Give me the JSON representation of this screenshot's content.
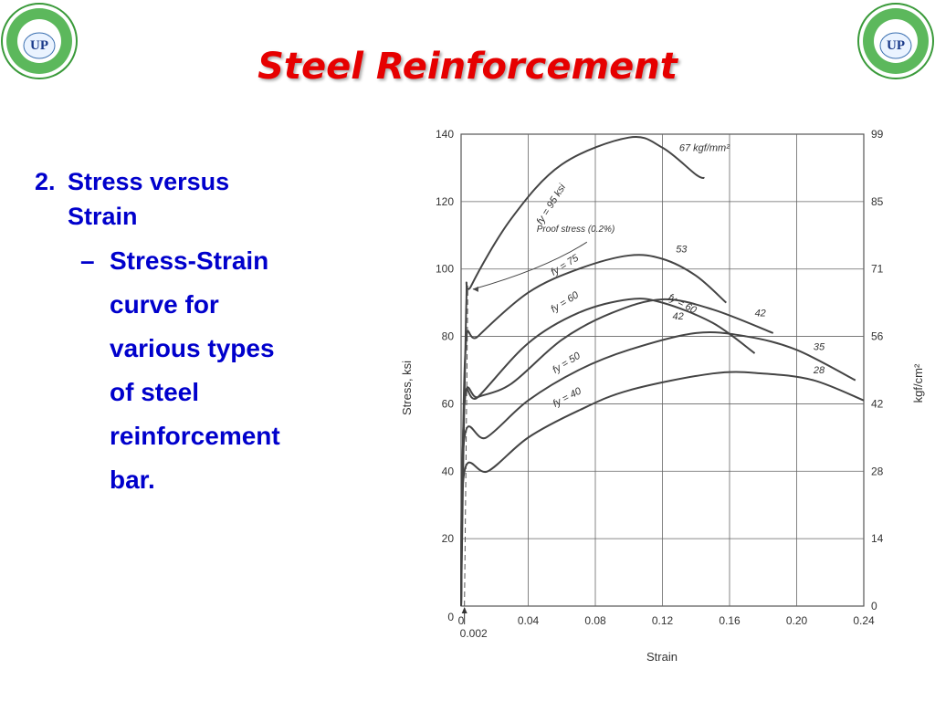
{
  "logo": {
    "text": "UP",
    "arc_text": "UNIVERSITY OF PALESTINE"
  },
  "title": "Steel Reinforcement",
  "bullets": {
    "level1": {
      "number": "2.",
      "text_line1": "Stress versus",
      "text_line2": "Strain"
    },
    "level2": {
      "dash": "–",
      "lines": [
        "Stress-Strain",
        "curve for",
        "various types",
        "of steel",
        "reinforcement",
        "bar."
      ]
    }
  },
  "chart_data": {
    "type": "line",
    "xlabel": "Strain",
    "ylabel": "Stress, ksi",
    "y2label": "kgf/cm²",
    "xlim": [
      0,
      0.24
    ],
    "ylim": [
      0,
      140
    ],
    "x_ticks": [
      "0",
      "0.04",
      "0.08",
      "0.12",
      "0.16",
      "0.20",
      "0.24"
    ],
    "y_ticks": [
      "0",
      "20",
      "40",
      "60",
      "80",
      "100",
      "120",
      "140"
    ],
    "y2_ticks": [
      "0",
      "14",
      "28",
      "42",
      "56",
      "71",
      "85",
      "99"
    ],
    "x_marker": "0.002",
    "grid": true,
    "annotations": {
      "proof_stress": "Proof stress (0.2%)",
      "fy95_label": "fy = 95 ksi",
      "fy95_end": "67 kgf/mm²",
      "fy75_label": "fy = 75",
      "fy75_end": "53",
      "fy60a_label": "fy = 60",
      "fy60a_end": "42",
      "fy60b_label": "fy = 60",
      "fy60b_end": "42",
      "fy50_label": "fy = 50",
      "fy50_end": "35",
      "fy40_label": "fy = 40",
      "fy40_end": "28"
    },
    "series": [
      {
        "name": "fy = 95 ksi",
        "points": [
          [
            0,
            0
          ],
          [
            0.003,
            88
          ],
          [
            0.006,
            95
          ],
          [
            0.03,
            115
          ],
          [
            0.06,
            131
          ],
          [
            0.1,
            139
          ],
          [
            0.12,
            136
          ],
          [
            0.14,
            128
          ],
          [
            0.145,
            127
          ]
        ]
      },
      {
        "name": "fy = 75",
        "points": [
          [
            0,
            0
          ],
          [
            0.0025,
            75
          ],
          [
            0.01,
            80
          ],
          [
            0.04,
            93
          ],
          [
            0.07,
            100
          ],
          [
            0.1,
            104
          ],
          [
            0.12,
            103
          ],
          [
            0.14,
            98
          ],
          [
            0.158,
            90
          ]
        ]
      },
      {
        "name": "fy = 60",
        "points": [
          [
            0,
            0
          ],
          [
            0.002,
            60
          ],
          [
            0.01,
            62
          ],
          [
            0.04,
            78
          ],
          [
            0.07,
            87
          ],
          [
            0.1,
            91
          ],
          [
            0.12,
            90
          ],
          [
            0.15,
            84
          ],
          [
            0.175,
            75
          ]
        ]
      },
      {
        "name": "fy = 60",
        "points": [
          [
            0,
            0
          ],
          [
            0.002,
            60
          ],
          [
            0.01,
            62
          ],
          [
            0.03,
            66
          ],
          [
            0.06,
            79
          ],
          [
            0.09,
            87
          ],
          [
            0.12,
            91
          ],
          [
            0.15,
            88
          ],
          [
            0.186,
            81
          ]
        ]
      },
      {
        "name": "fy = 50",
        "points": [
          [
            0,
            0
          ],
          [
            0.002,
            50
          ],
          [
            0.015,
            50
          ],
          [
            0.04,
            61
          ],
          [
            0.07,
            70
          ],
          [
            0.1,
            76
          ],
          [
            0.14,
            81
          ],
          [
            0.17,
            80
          ],
          [
            0.2,
            76
          ],
          [
            0.235,
            67
          ]
        ]
      },
      {
        "name": "fy = 40",
        "points": [
          [
            0,
            0
          ],
          [
            0.002,
            40
          ],
          [
            0.016,
            40
          ],
          [
            0.04,
            50
          ],
          [
            0.07,
            58
          ],
          [
            0.1,
            64
          ],
          [
            0.15,
            69
          ],
          [
            0.18,
            69
          ],
          [
            0.21,
            67
          ],
          [
            0.24,
            61
          ]
        ]
      }
    ]
  }
}
